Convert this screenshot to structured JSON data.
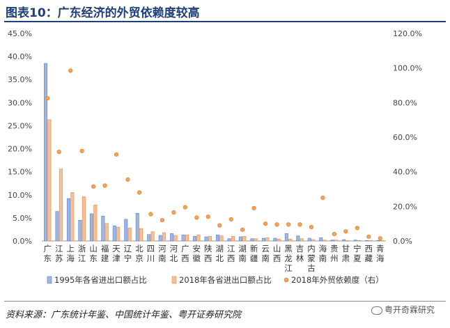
{
  "header": {
    "title": "图表10：广东经济的外贸依赖度较高"
  },
  "footer": {
    "source": "资料来源：广东统计年鉴、中国统计年鉴、粤开证券研究院",
    "watermark": "粤开奇霖研究"
  },
  "chart_data": {
    "type": "bar",
    "categories": [
      "广东",
      "江苏",
      "上海",
      "浙江",
      "山东",
      "福建",
      "天津",
      "辽宁",
      "北京",
      "四川",
      "河南",
      "河北",
      "广西",
      "安徽",
      "陕西",
      "湖北",
      "江西",
      "湖南",
      "新疆",
      "云南",
      "山西",
      "黑龙江",
      "吉林",
      "内蒙古",
      "海南",
      "贵州",
      "甘肃",
      "宁夏",
      "西藏",
      "青海"
    ],
    "series": [
      {
        "name": "1995年各省进出口额占比",
        "axis": "left",
        "kind": "bar",
        "values": [
          38.5,
          6.4,
          9.2,
          4.5,
          5.9,
          5.4,
          3.3,
          4.7,
          6.0,
          1.4,
          1.2,
          1.6,
          1.3,
          1.0,
          0.9,
          1.3,
          0.5,
          0.9,
          0.5,
          0.6,
          0.6,
          1.6,
          1.1,
          0.6,
          0.7,
          0.2,
          0.3,
          0.2,
          0.1,
          0.1
        ]
      },
      {
        "name": "2018年各省进出口额占比",
        "axis": "left",
        "kind": "bar",
        "values": [
          26.3,
          15.6,
          10.5,
          9.6,
          7.8,
          3.8,
          3.0,
          2.8,
          2.7,
          2.0,
          1.8,
          1.2,
          1.3,
          1.3,
          1.0,
          1.1,
          1.0,
          1.0,
          0.5,
          0.7,
          0.4,
          0.4,
          0.5,
          0.3,
          0.2,
          0.2,
          0.1,
          0.1,
          0.1,
          0.1
        ]
      },
      {
        "name": "2018年外贸依赖度（右）",
        "axis": "right",
        "kind": "scatter",
        "values": [
          82.5,
          51.5,
          98.5,
          52.0,
          31.5,
          32.0,
          50.0,
          35.5,
          28.0,
          15.5,
          12.0,
          16.5,
          19.5,
          13.5,
          14.0,
          9.0,
          12.5,
          6.5,
          19.0,
          10.0,
          9.5,
          9.5,
          9.5,
          8.0,
          25.0,
          4.0,
          5.5,
          7.5,
          2.5,
          1.5
        ]
      }
    ],
    "y_left": {
      "min": 0,
      "max": 45,
      "step": 5,
      "tick_labels": [
        "0.0%",
        "5.0%",
        "10.0%",
        "15.0%",
        "20.0%",
        "25.0%",
        "30.0%",
        "35.0%",
        "40.0%",
        "45.0%"
      ]
    },
    "y_right": {
      "min": 0,
      "max": 120,
      "step": 20,
      "tick_labels": [
        "0.0%",
        "20.0%",
        "40.0%",
        "60.0%",
        "80.0%",
        "100.0%",
        "120.0%"
      ]
    },
    "grid": false,
    "legend": "bottom",
    "colors": {
      "bar1995": "#9eb7e2",
      "bar1995_edge": "#5b7fc4",
      "bar2018": "#f6bf96",
      "bar2018_edge": "#e88a4d",
      "dot": "#f4a259",
      "dot_edge": "#d97a2b",
      "axis": "#999999"
    }
  }
}
